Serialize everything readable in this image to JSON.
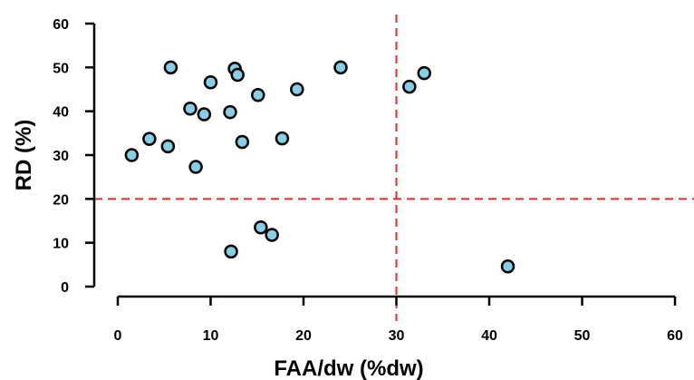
{
  "chart_data": {
    "type": "scatter",
    "xlabel": "FAA/dw (%dw)",
    "ylabel": "RD (%)",
    "xlim": [
      0,
      60
    ],
    "ylim": [
      0,
      60
    ],
    "x_ticks": [
      "0",
      "10",
      "20",
      "30",
      "40",
      "50",
      "60"
    ],
    "y_ticks": [
      "0",
      "10",
      "20",
      "30",
      "40",
      "50",
      "60"
    ],
    "grid": false,
    "reference_lines": [
      {
        "axis": "x",
        "value": 30,
        "style": "dashed",
        "color": "#e8292a"
      },
      {
        "axis": "y",
        "value": 20,
        "style": "dashed",
        "color": "#e8292a"
      }
    ],
    "marker": {
      "fill": "#87cee6",
      "stroke": "#000000"
    },
    "points": [
      {
        "x": 1.5,
        "y": 30
      },
      {
        "x": 3.4,
        "y": 33.7
      },
      {
        "x": 5.4,
        "y": 32
      },
      {
        "x": 5.7,
        "y": 50
      },
      {
        "x": 7.8,
        "y": 40.6
      },
      {
        "x": 8.4,
        "y": 27.3
      },
      {
        "x": 9.3,
        "y": 39.3
      },
      {
        "x": 10.0,
        "y": 46.6
      },
      {
        "x": 12.1,
        "y": 39.8
      },
      {
        "x": 12.2,
        "y": 8.0
      },
      {
        "x": 12.6,
        "y": 49.7
      },
      {
        "x": 12.9,
        "y": 48.3
      },
      {
        "x": 13.4,
        "y": 33.0
      },
      {
        "x": 15.1,
        "y": 43.7
      },
      {
        "x": 15.4,
        "y": 13.5
      },
      {
        "x": 16.6,
        "y": 11.8
      },
      {
        "x": 17.7,
        "y": 33.8
      },
      {
        "x": 19.3,
        "y": 45.0
      },
      {
        "x": 24.0,
        "y": 50.0
      },
      {
        "x": 31.4,
        "y": 45.6
      },
      {
        "x": 33.0,
        "y": 48.7
      },
      {
        "x": 42.0,
        "y": 4.6
      }
    ]
  }
}
